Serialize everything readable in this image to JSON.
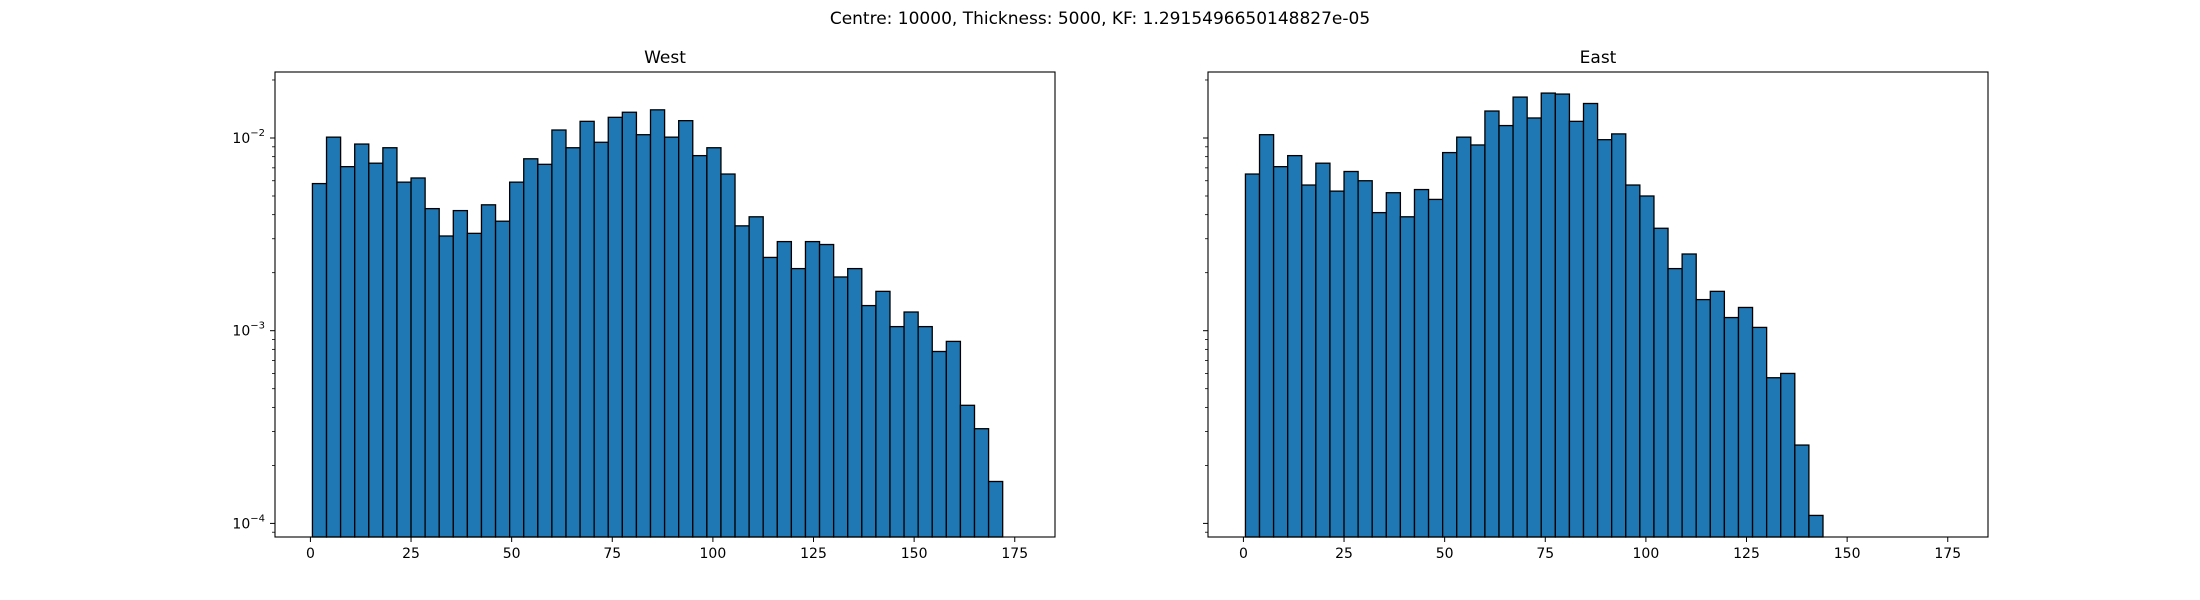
{
  "figure": {
    "suptitle": "Centre: 10000, Thickness: 5000, KF: 1.2915496650148827e-05"
  },
  "colors": {
    "bar_fill": "#1f77b4",
    "bar_edge": "#000000",
    "axes": "#000000",
    "background": "#ffffff"
  },
  "chart_data": [
    {
      "type": "bar",
      "title": "West",
      "xlabel": "",
      "ylabel": "",
      "yscale": "log",
      "xlim": [
        -8.8,
        185
      ],
      "ylim": [
        8.5e-05,
        0.022
      ],
      "xticks": [
        0,
        25,
        50,
        75,
        100,
        125,
        150,
        175
      ],
      "yticks": [
        {
          "value": 0.0001,
          "base": "10",
          "exp": "−4"
        },
        {
          "value": 0.001,
          "base": "10",
          "exp": "−3"
        },
        {
          "value": 0.01,
          "base": "10",
          "exp": "−2"
        }
      ],
      "bin_start": 0.5,
      "bin_width": 3.5,
      "values": [
        0.0058,
        0.0101,
        0.0071,
        0.0093,
        0.0074,
        0.0089,
        0.0059,
        0.0062,
        0.0043,
        0.0031,
        0.0042,
        0.0032,
        0.0045,
        0.0037,
        0.0059,
        0.0078,
        0.0073,
        0.011,
        0.0089,
        0.0122,
        0.0095,
        0.0128,
        0.0136,
        0.0104,
        0.014,
        0.0101,
        0.0123,
        0.0081,
        0.0089,
        0.0065,
        0.0035,
        0.0039,
        0.0024,
        0.0029,
        0.0021,
        0.0029,
        0.0028,
        0.0019,
        0.0021,
        0.00135,
        0.0016,
        0.00105,
        0.00125,
        0.00105,
        0.00078,
        0.00088,
        0.00041,
        0.00031,
        0.000165
      ],
      "grid": false,
      "legend": "none"
    },
    {
      "type": "bar",
      "title": "East",
      "xlabel": "",
      "ylabel": "",
      "yscale": "log",
      "xlim": [
        -8.8,
        185
      ],
      "ylim": [
        8.5e-05,
        0.022
      ],
      "xticks": [
        0,
        25,
        50,
        75,
        100,
        125,
        150,
        175
      ],
      "yticks_labeled": false,
      "bin_start": 0.5,
      "bin_width": 3.5,
      "values": [
        0.0065,
        0.0104,
        0.0071,
        0.0081,
        0.0057,
        0.0074,
        0.0053,
        0.0067,
        0.006,
        0.0041,
        0.0052,
        0.0039,
        0.0054,
        0.0048,
        0.0084,
        0.0101,
        0.0092,
        0.0138,
        0.0116,
        0.0163,
        0.0127,
        0.0171,
        0.0169,
        0.0122,
        0.0151,
        0.0098,
        0.0105,
        0.0057,
        0.005,
        0.0034,
        0.0021,
        0.0025,
        0.00145,
        0.0016,
        0.00117,
        0.00132,
        0.00104,
        0.00057,
        0.0006,
        0.000255,
        0.00011
      ],
      "grid": false,
      "legend": "none"
    }
  ]
}
